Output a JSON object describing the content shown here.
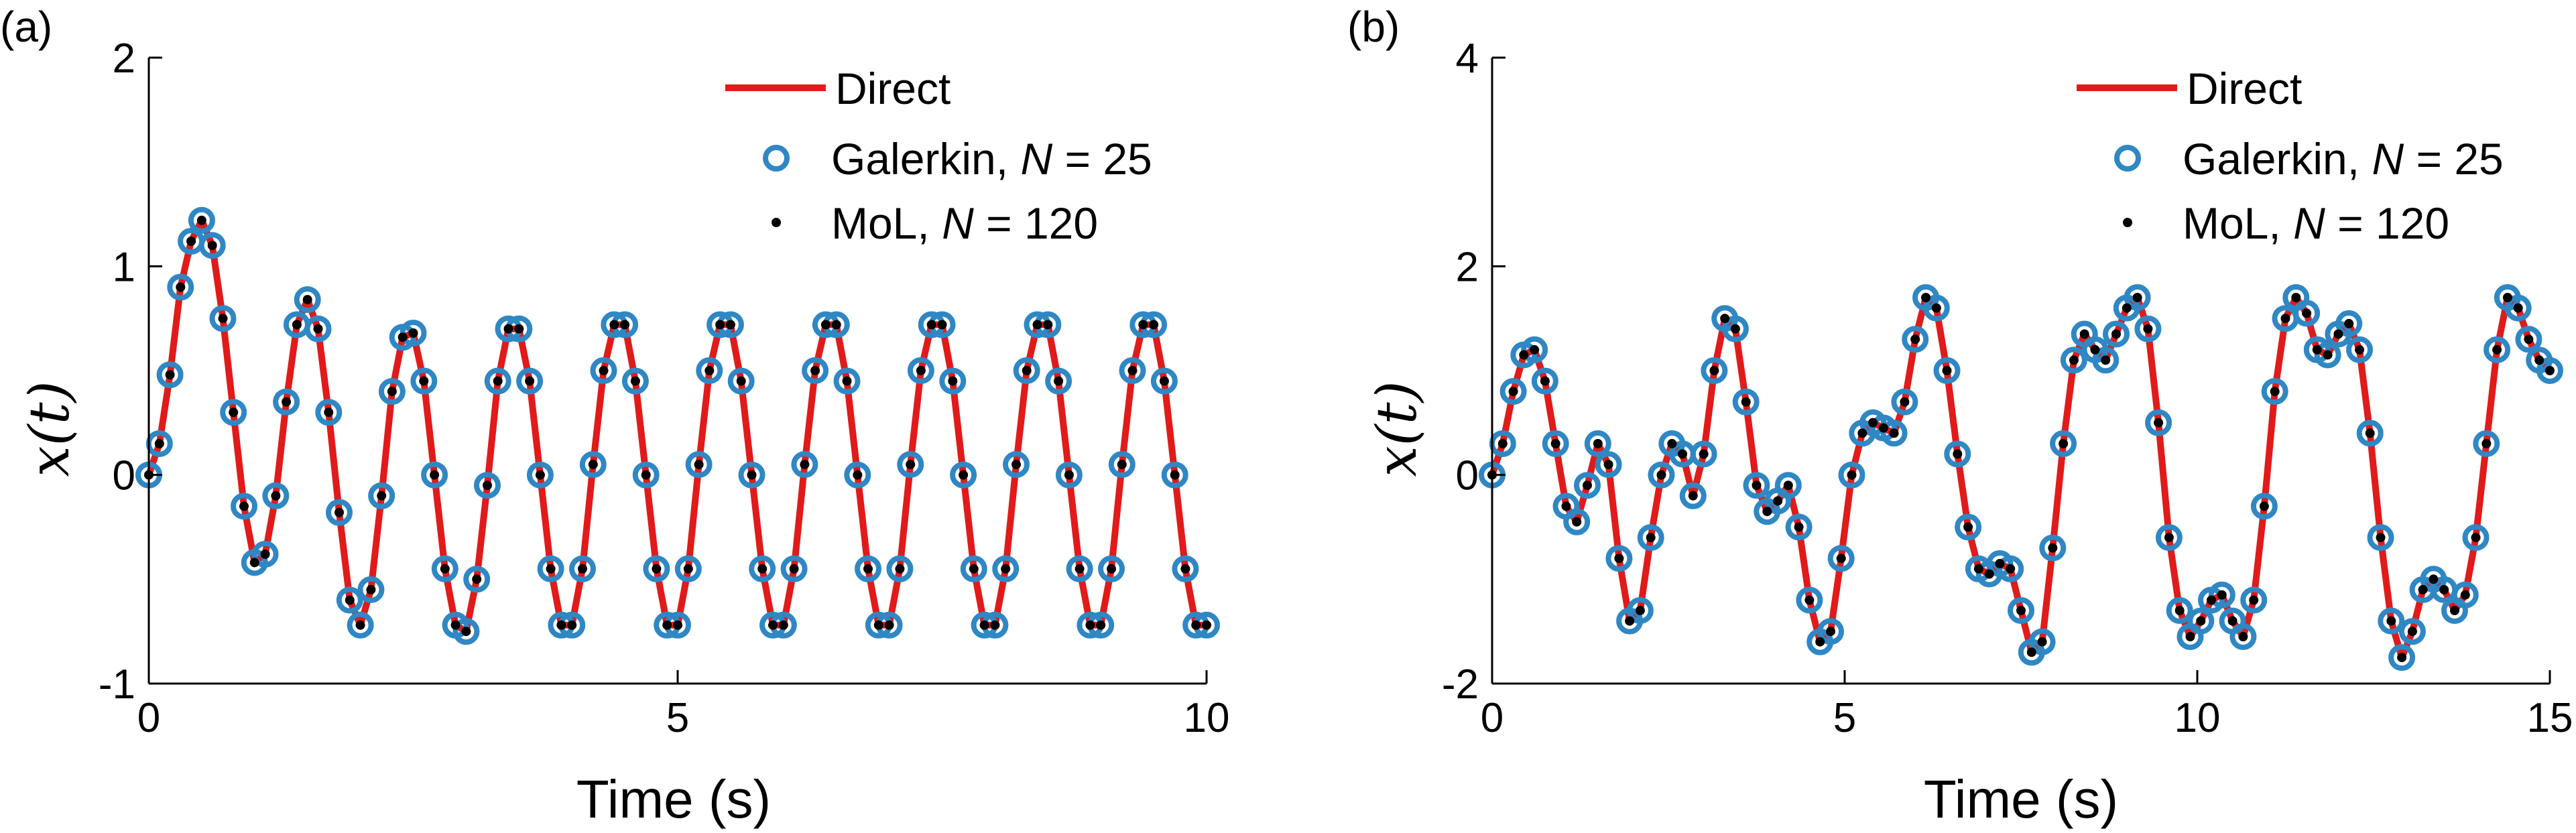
{
  "colors": {
    "direct": "#e11a1a",
    "galerkin": "#2f87c4",
    "mol": "#000000",
    "axis": "#000000"
  },
  "chart_data": [
    {
      "panel": "(a)",
      "type": "line",
      "xlabel": "Time (s)",
      "ylabel": "x(t)",
      "xlim": [
        0,
        10
      ],
      "ylim": [
        -1,
        2
      ],
      "xticks": [
        "0",
        "5",
        "10"
      ],
      "yticks": [
        "-1",
        "0",
        "1",
        "2"
      ],
      "legend": {
        "placement": "top-right",
        "entries": [
          {
            "label": "Direct",
            "style": "red line"
          },
          {
            "label": "Galerkin, ",
            "n_label": "N",
            "n_value": " = 25",
            "style": "blue open circle"
          },
          {
            "label": "MoL, ",
            "n_label": "N",
            "n_value": " = 120",
            "style": "black dot"
          }
        ]
      },
      "series": [
        {
          "name": "Direct",
          "marker": "line"
        },
        {
          "name": "Galerkin, N = 25",
          "marker": "circle"
        },
        {
          "name": "MoL, N = 120",
          "marker": "dot"
        }
      ],
      "x": [
        0.0,
        0.1,
        0.2,
        0.3,
        0.4,
        0.5,
        0.6,
        0.7,
        0.8,
        0.9,
        1.0,
        1.1,
        1.2,
        1.3,
        1.4,
        1.5,
        1.6,
        1.7,
        1.8,
        1.9,
        2.0,
        2.1,
        2.2,
        2.3,
        2.4,
        2.5,
        2.6,
        2.7,
        2.8,
        2.9,
        3.0,
        3.1,
        3.2,
        3.3,
        3.4,
        3.5,
        3.6,
        3.7,
        3.8,
        3.9,
        4.0,
        4.1,
        4.2,
        4.3,
        4.4,
        4.5,
        4.6,
        4.7,
        4.8,
        4.9,
        5.0,
        5.1,
        5.2,
        5.3,
        5.4,
        5.5,
        5.6,
        5.7,
        5.8,
        5.9,
        6.0,
        6.1,
        6.2,
        6.3,
        6.4,
        6.5,
        6.6,
        6.7,
        6.8,
        6.9,
        7.0,
        7.1,
        7.2,
        7.3,
        7.4,
        7.5,
        7.6,
        7.7,
        7.8,
        7.9,
        8.0,
        8.1,
        8.2,
        8.3,
        8.4,
        8.5,
        8.6,
        8.7,
        8.8,
        8.9,
        9.0,
        9.1,
        9.2,
        9.3,
        9.4,
        9.5,
        9.6,
        9.7,
        9.8,
        9.9,
        10.0
      ],
      "y": [
        0.0,
        0.15,
        0.48,
        0.9,
        1.12,
        1.22,
        1.1,
        0.75,
        0.3,
        -0.15,
        -0.42,
        -0.38,
        -0.1,
        0.35,
        0.72,
        0.84,
        0.7,
        0.3,
        -0.18,
        -0.6,
        -0.72,
        -0.55,
        -0.1,
        0.4,
        0.66,
        0.68,
        0.45,
        0.0,
        -0.45,
        -0.72,
        -0.75,
        -0.5,
        -0.05,
        0.45,
        0.7,
        0.7,
        0.45,
        0.0,
        -0.45,
        -0.72,
        -0.72,
        -0.45,
        0.05,
        0.5,
        0.72,
        0.72,
        0.45,
        0.0,
        -0.45,
        -0.72,
        -0.72,
        -0.45,
        0.05,
        0.5,
        0.72,
        0.72,
        0.45,
        0.0,
        -0.45,
        -0.72,
        -0.72,
        -0.45,
        0.05,
        0.5,
        0.72,
        0.72,
        0.45,
        0.0,
        -0.45,
        -0.72,
        -0.72,
        -0.45,
        0.05,
        0.5,
        0.72,
        0.72,
        0.45,
        0.0,
        -0.45,
        -0.72,
        -0.72,
        -0.45,
        0.05,
        0.5,
        0.72,
        0.72,
        0.45,
        0.0,
        -0.45,
        -0.72,
        -0.72,
        -0.45,
        0.05,
        0.5,
        0.72,
        0.72,
        0.45,
        0.0,
        -0.45,
        -0.72,
        -0.72
      ]
    },
    {
      "panel": "(b)",
      "type": "line",
      "xlabel": "Time (s)",
      "ylabel": "x(t)",
      "xlim": [
        0,
        15
      ],
      "ylim": [
        -2,
        4
      ],
      "xticks": [
        "0",
        "5",
        "10",
        "15"
      ],
      "yticks": [
        "-2",
        "0",
        "2",
        "4"
      ],
      "legend": {
        "placement": "top-right",
        "entries": [
          {
            "label": "Direct",
            "style": "red line"
          },
          {
            "label": "Galerkin, ",
            "n_label": "N",
            "n_value": " = 25",
            "style": "blue open circle"
          },
          {
            "label": "MoL, ",
            "n_label": "N",
            "n_value": " = 120",
            "style": "black dot"
          }
        ]
      },
      "series": [
        {
          "name": "Direct",
          "marker": "line"
        },
        {
          "name": "Galerkin, N = 25",
          "marker": "circle"
        },
        {
          "name": "MoL, N = 120",
          "marker": "dot"
        }
      ],
      "x": [
        0.0,
        0.15,
        0.3,
        0.45,
        0.6,
        0.75,
        0.9,
        1.05,
        1.2,
        1.35,
        1.5,
        1.65,
        1.8,
        1.95,
        2.1,
        2.25,
        2.4,
        2.55,
        2.7,
        2.85,
        3.0,
        3.15,
        3.3,
        3.45,
        3.6,
        3.75,
        3.9,
        4.05,
        4.2,
        4.35,
        4.5,
        4.65,
        4.8,
        4.95,
        5.1,
        5.25,
        5.4,
        5.55,
        5.7,
        5.85,
        6.0,
        6.15,
        6.3,
        6.45,
        6.6,
        6.75,
        6.9,
        7.05,
        7.2,
        7.35,
        7.5,
        7.65,
        7.8,
        7.95,
        8.1,
        8.25,
        8.4,
        8.55,
        8.7,
        8.85,
        9.0,
        9.15,
        9.3,
        9.45,
        9.6,
        9.75,
        9.9,
        10.05,
        10.2,
        10.35,
        10.5,
        10.65,
        10.8,
        10.95,
        11.1,
        11.25,
        11.4,
        11.55,
        11.7,
        11.85,
        12.0,
        12.15,
        12.3,
        12.45,
        12.6,
        12.75,
        12.9,
        13.05,
        13.2,
        13.35,
        13.5,
        13.65,
        13.8,
        13.95,
        14.1,
        14.25,
        14.4,
        14.55,
        14.7,
        14.85,
        15.0
      ],
      "y": [
        0.0,
        0.3,
        0.8,
        1.15,
        1.2,
        0.9,
        0.3,
        -0.3,
        -0.45,
        -0.1,
        0.3,
        0.1,
        -0.8,
        -1.4,
        -1.3,
        -0.6,
        0.0,
        0.3,
        0.2,
        -0.2,
        0.2,
        1.0,
        1.5,
        1.4,
        0.7,
        -0.1,
        -0.35,
        -0.25,
        -0.1,
        -0.5,
        -1.2,
        -1.6,
        -1.5,
        -0.8,
        0.0,
        0.4,
        0.5,
        0.45,
        0.4,
        0.7,
        1.3,
        1.7,
        1.6,
        1.0,
        0.2,
        -0.5,
        -0.9,
        -0.95,
        -0.85,
        -0.9,
        -1.3,
        -1.7,
        -1.6,
        -0.7,
        0.3,
        1.1,
        1.35,
        1.2,
        1.1,
        1.35,
        1.6,
        1.7,
        1.4,
        0.5,
        -0.6,
        -1.3,
        -1.55,
        -1.4,
        -1.2,
        -1.15,
        -1.4,
        -1.55,
        -1.2,
        -0.3,
        0.8,
        1.5,
        1.7,
        1.55,
        1.2,
        1.15,
        1.35,
        1.45,
        1.2,
        0.4,
        -0.6,
        -1.4,
        -1.75,
        -1.5,
        -1.1,
        -1.0,
        -1.1,
        -1.3,
        -1.15,
        -0.6,
        0.3,
        1.2,
        1.7,
        1.6,
        1.3,
        1.1,
        1.0
      ]
    }
  ]
}
